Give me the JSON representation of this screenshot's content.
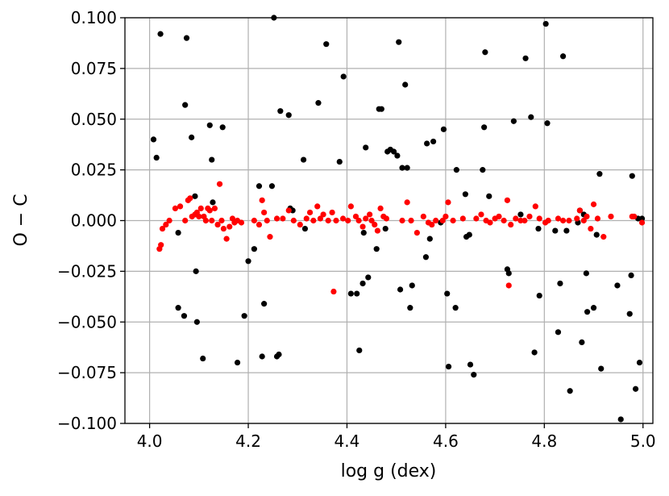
{
  "chart_data": {
    "type": "scatter",
    "title": "",
    "xlabel": "log g (dex)",
    "ylabel": "O − C",
    "xlim": [
      3.95,
      5.02
    ],
    "ylim": [
      -0.1,
      0.1
    ],
    "grid": true,
    "x_ticks": [
      4.0,
      4.2,
      4.4,
      4.6,
      4.8,
      5.0
    ],
    "x_tick_labels": [
      "4.0",
      "4.2",
      "4.4",
      "4.6",
      "4.8",
      "5.0"
    ],
    "y_ticks": [
      0.1,
      0.075,
      0.05,
      0.025,
      0.0,
      -0.025,
      -0.05,
      -0.075,
      -0.1
    ],
    "y_tick_labels": [
      "0.100",
      "0.075",
      "0.050",
      "0.025",
      "0.000",
      "−0.025",
      "−0.050",
      "−0.075",
      "−0.100"
    ],
    "series": [
      {
        "color": "#000000",
        "points": [
          [
            4.008,
            0.04
          ],
          [
            4.014,
            0.031
          ],
          [
            4.022,
            0.092
          ],
          [
            4.075,
            0.09
          ],
          [
            4.072,
            0.057
          ],
          [
            4.085,
            0.041
          ],
          [
            4.092,
            0.012
          ],
          [
            4.094,
            -0.025
          ],
          [
            4.096,
            -0.05
          ],
          [
            4.058,
            -0.006
          ],
          [
            4.058,
            -0.043
          ],
          [
            4.07,
            -0.047
          ],
          [
            4.108,
            -0.068
          ],
          [
            4.122,
            0.047
          ],
          [
            4.126,
            0.03
          ],
          [
            4.128,
            0.009
          ],
          [
            4.148,
            0.046
          ],
          [
            4.178,
            -0.07
          ],
          [
            4.192,
            -0.047
          ],
          [
            4.2,
            -0.02
          ],
          [
            4.212,
            -0.014
          ],
          [
            4.222,
            0.017
          ],
          [
            4.228,
            -0.067
          ],
          [
            4.232,
            -0.041
          ],
          [
            4.248,
            0.017
          ],
          [
            4.252,
            0.1
          ],
          [
            4.258,
            -0.067
          ],
          [
            4.262,
            -0.066
          ],
          [
            4.265,
            0.054
          ],
          [
            4.282,
            0.052
          ],
          [
            4.285,
            0.006
          ],
          [
            4.29,
            0.005
          ],
          [
            4.312,
            0.03
          ],
          [
            4.315,
            -0.004
          ],
          [
            4.342,
            0.058
          ],
          [
            4.358,
            0.087
          ],
          [
            4.385,
            0.029
          ],
          [
            4.393,
            0.071
          ],
          [
            4.408,
            -0.036
          ],
          [
            4.42,
            -0.036
          ],
          [
            4.425,
            -0.064
          ],
          [
            4.432,
            -0.031
          ],
          [
            4.434,
            -0.006
          ],
          [
            4.438,
            0.036
          ],
          [
            4.443,
            -0.028
          ],
          [
            4.46,
            -0.014
          ],
          [
            4.465,
            0.055
          ],
          [
            4.47,
            0.055
          ],
          [
            4.478,
            -0.004
          ],
          [
            4.482,
            0.034
          ],
          [
            4.488,
            0.035
          ],
          [
            4.495,
            0.034
          ],
          [
            4.502,
            0.032
          ],
          [
            4.505,
            0.088
          ],
          [
            4.508,
            -0.034
          ],
          [
            4.512,
            0.026
          ],
          [
            4.518,
            0.067
          ],
          [
            4.522,
            0.026
          ],
          [
            4.528,
            -0.043
          ],
          [
            4.532,
            -0.032
          ],
          [
            4.56,
            -0.018
          ],
          [
            4.562,
            0.038
          ],
          [
            4.568,
            -0.009
          ],
          [
            4.575,
            0.039
          ],
          [
            4.59,
            -0.001
          ],
          [
            4.596,
            0.045
          ],
          [
            4.603,
            -0.036
          ],
          [
            4.606,
            -0.072
          ],
          [
            4.62,
            -0.043
          ],
          [
            4.622,
            0.025
          ],
          [
            4.64,
            0.013
          ],
          [
            4.642,
            -0.008
          ],
          [
            4.648,
            -0.007
          ],
          [
            4.65,
            -0.071
          ],
          [
            4.657,
            -0.076
          ],
          [
            4.675,
            0.025
          ],
          [
            4.678,
            0.046
          ],
          [
            4.68,
            0.083
          ],
          [
            4.688,
            0.012
          ],
          [
            4.725,
            -0.024
          ],
          [
            4.728,
            -0.026
          ],
          [
            4.738,
            0.049
          ],
          [
            4.752,
            0.003
          ],
          [
            4.762,
            0.08
          ],
          [
            4.773,
            0.051
          ],
          [
            4.78,
            -0.065
          ],
          [
            4.788,
            -0.004
          ],
          [
            4.79,
            -0.037
          ],
          [
            4.803,
            0.097
          ],
          [
            4.806,
            0.048
          ],
          [
            4.822,
            -0.005
          ],
          [
            4.828,
            -0.055
          ],
          [
            4.832,
            -0.031
          ],
          [
            4.838,
            0.081
          ],
          [
            4.845,
            -0.005
          ],
          [
            4.852,
            -0.084
          ],
          [
            4.868,
            -0.001
          ],
          [
            4.872,
            0.005
          ],
          [
            4.876,
            -0.06
          ],
          [
            4.88,
            0.003
          ],
          [
            4.885,
            -0.026
          ],
          [
            4.887,
            -0.045
          ],
          [
            4.9,
            -0.043
          ],
          [
            4.906,
            -0.007
          ],
          [
            4.912,
            0.023
          ],
          [
            4.915,
            -0.073
          ],
          [
            4.948,
            -0.032
          ],
          [
            4.955,
            -0.098
          ],
          [
            4.973,
            -0.046
          ],
          [
            4.976,
            -0.027
          ],
          [
            4.978,
            0.022
          ],
          [
            4.985,
            -0.083
          ],
          [
            4.99,
            0.001
          ],
          [
            4.993,
            -0.07
          ],
          [
            4.998,
            0.001
          ]
        ]
      },
      {
        "color": "#ff0000",
        "points": [
          [
            4.02,
            -0.014
          ],
          [
            4.023,
            -0.012
          ],
          [
            4.026,
            -0.004
          ],
          [
            4.033,
            -0.002
          ],
          [
            4.04,
            0.0
          ],
          [
            4.052,
            0.006
          ],
          [
            4.062,
            0.007
          ],
          [
            4.072,
            0.0
          ],
          [
            4.078,
            0.01
          ],
          [
            4.082,
            0.011
          ],
          [
            4.086,
            0.002
          ],
          [
            4.092,
            0.003
          ],
          [
            4.096,
            0.004
          ],
          [
            4.1,
            0.002
          ],
          [
            4.104,
            0.006
          ],
          [
            4.11,
            0.002
          ],
          [
            4.114,
            0.0
          ],
          [
            4.118,
            0.006
          ],
          [
            4.122,
            0.005
          ],
          [
            4.126,
            0.0
          ],
          [
            4.132,
            0.006
          ],
          [
            4.138,
            -0.002
          ],
          [
            4.142,
            0.018
          ],
          [
            4.146,
            0.0
          ],
          [
            4.15,
            -0.004
          ],
          [
            4.156,
            -0.009
          ],
          [
            4.162,
            -0.003
          ],
          [
            4.168,
            0.001
          ],
          [
            4.172,
            -0.001
          ],
          [
            4.178,
            0.0
          ],
          [
            4.186,
            -0.001
          ],
          [
            4.212,
            0.0
          ],
          [
            4.222,
            -0.002
          ],
          [
            4.228,
            0.01
          ],
          [
            4.232,
            0.004
          ],
          [
            4.238,
            0.0
          ],
          [
            4.244,
            -0.008
          ],
          [
            4.258,
            0.001
          ],
          [
            4.27,
            0.001
          ],
          [
            4.282,
            0.005
          ],
          [
            4.292,
            0.0
          ],
          [
            4.305,
            -0.002
          ],
          [
            4.318,
            0.001
          ],
          [
            4.325,
            0.004
          ],
          [
            4.332,
            0.0
          ],
          [
            4.34,
            0.007
          ],
          [
            4.346,
            0.001
          ],
          [
            4.352,
            0.003
          ],
          [
            4.362,
            0.0
          ],
          [
            4.37,
            0.004
          ],
          [
            4.373,
            -0.035
          ],
          [
            4.378,
            0.0
          ],
          [
            4.392,
            0.001
          ],
          [
            4.402,
            0.0
          ],
          [
            4.408,
            0.007
          ],
          [
            4.418,
            0.002
          ],
          [
            4.424,
            0.0
          ],
          [
            4.432,
            -0.003
          ],
          [
            4.438,
            0.001
          ],
          [
            4.446,
            0.003
          ],
          [
            4.45,
            0.0
          ],
          [
            4.456,
            -0.002
          ],
          [
            4.462,
            -0.005
          ],
          [
            4.468,
            0.006
          ],
          [
            4.474,
            0.002
          ],
          [
            4.48,
            0.001
          ],
          [
            4.512,
            0.0
          ],
          [
            4.522,
            0.009
          ],
          [
            4.53,
            0.0
          ],
          [
            4.542,
            -0.006
          ],
          [
            4.555,
            0.002
          ],
          [
            4.565,
            -0.001
          ],
          [
            4.572,
            -0.002
          ],
          [
            4.58,
            0.0
          ],
          [
            4.594,
            0.0
          ],
          [
            4.6,
            0.002
          ],
          [
            4.605,
            0.009
          ],
          [
            4.615,
            0.0
          ],
          [
            4.635,
            0.001
          ],
          [
            4.662,
            0.001
          ],
          [
            4.672,
            0.003
          ],
          [
            4.682,
            0.0
          ],
          [
            4.69,
            -0.001
          ],
          [
            4.7,
            0.001
          ],
          [
            4.708,
            0.002
          ],
          [
            4.718,
            0.0
          ],
          [
            4.725,
            0.01
          ],
          [
            4.728,
            -0.032
          ],
          [
            4.732,
            -0.002
          ],
          [
            4.742,
            0.001
          ],
          [
            4.752,
            0.0
          ],
          [
            4.76,
            0.0
          ],
          [
            4.77,
            0.002
          ],
          [
            4.782,
            0.007
          ],
          [
            4.79,
            0.001
          ],
          [
            4.802,
            -0.001
          ],
          [
            4.808,
            0.0
          ],
          [
            4.828,
            0.001
          ],
          [
            4.838,
            0.0
          ],
          [
            4.85,
            0.0
          ],
          [
            4.866,
            0.001
          ],
          [
            4.872,
            0.005
          ],
          [
            4.88,
            0.0
          ],
          [
            4.886,
            0.002
          ],
          [
            4.894,
            -0.004
          ],
          [
            4.9,
            0.008
          ],
          [
            4.908,
            0.001
          ],
          [
            4.92,
            -0.008
          ],
          [
            4.935,
            0.002
          ],
          [
            4.978,
            0.002
          ],
          [
            4.982,
            0.002
          ],
          [
            4.998,
            -0.001
          ]
        ]
      }
    ]
  }
}
